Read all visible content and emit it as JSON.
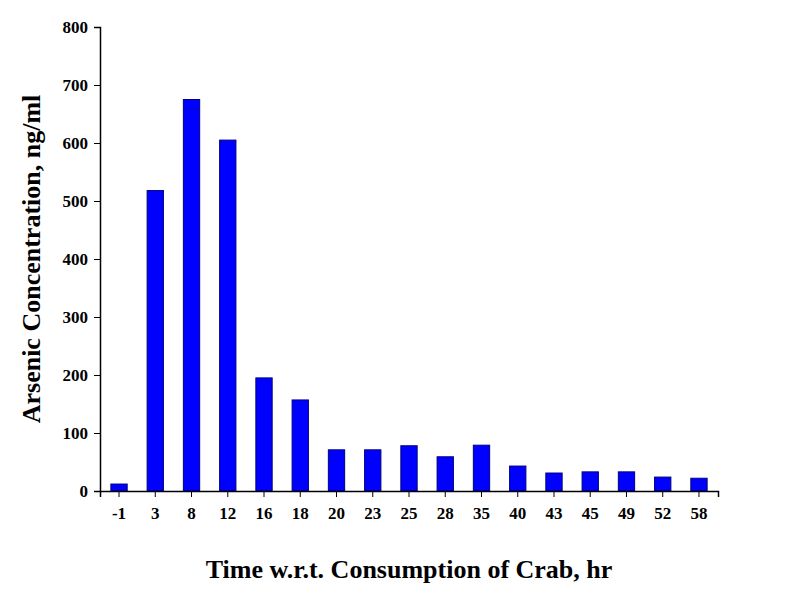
{
  "chart_data": {
    "type": "bar",
    "x_label": "Time w.r.t. Consumption of Crab, hr",
    "y_label": "Arsenic Concentration, ng/ml",
    "categories": [
      "-1",
      "3",
      "8",
      "12",
      "16",
      "18",
      "20",
      "23",
      "25",
      "28",
      "35",
      "40",
      "43",
      "45",
      "49",
      "52",
      "58"
    ],
    "values": [
      12,
      518,
      675,
      605,
      195,
      157,
      71,
      71,
      78,
      59,
      79,
      43,
      31,
      33,
      33,
      24,
      22
    ],
    "color": "#0000ff",
    "ylim": [
      0,
      800
    ],
    "yticks": [
      0,
      100,
      200,
      300,
      400,
      500,
      600,
      700,
      800
    ],
    "grid": false
  }
}
